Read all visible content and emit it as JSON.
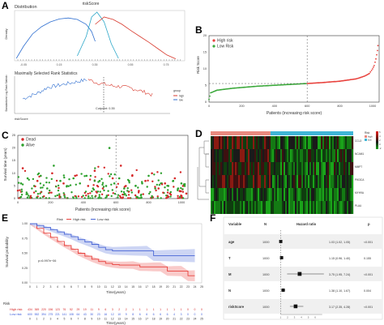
{
  "panels": {
    "A": {
      "label": "A",
      "top_title": "riskScore",
      "density": {
        "title": "Distribution",
        "ylabel": "Density",
        "x_ticks": [
          "-0.05",
          "0.15",
          "0.35",
          "0.55",
          "0.75"
        ]
      },
      "rank": {
        "title": "Maximally Selected Rank Statistics",
        "ylabel": "Standardized Log-Rank Statistic",
        "xlabel": "riskScore",
        "cutpoint_label": "Cutpoint: 0.35",
        "legend_title": "group",
        "legend_items": [
          "high",
          "low"
        ]
      }
    },
    "B": {
      "label": "B",
      "ylabel": "Risk Score",
      "xlabel": "Patients (increasing risk score)",
      "legend": [
        "High risk",
        "Low Risk"
      ],
      "x_ticks": [
        "0",
        "200",
        "400",
        "600",
        "800",
        "1000"
      ],
      "y_ticks": [
        "0",
        "5",
        "10",
        "15",
        "20"
      ],
      "colors": {
        "high": "#e8413c",
        "low": "#3aa83a"
      }
    },
    "C": {
      "label": "C",
      "ylabel": "Survival time (years)",
      "xlabel": "Patients (increasing risk score)",
      "legend": [
        "Dead",
        "Alive"
      ],
      "x_ticks": [
        "0",
        "200",
        "400",
        "600",
        "800",
        "1000"
      ],
      "y_ticks": [
        "0",
        "5",
        "10",
        "15",
        "20",
        "25"
      ],
      "colors": {
        "dead": "#d62728",
        "alive": "#2ca02c"
      }
    },
    "D": {
      "label": "D",
      "genes": [
        "CCL3",
        "NCAM1",
        "MMP7",
        "PIK3CA",
        "MYH9A",
        "PLAU"
      ],
      "legend_title": "Risk",
      "legend_items": [
        "high",
        "low"
      ],
      "scale": [
        "6",
        "4",
        "2",
        "0",
        "-2"
      ]
    },
    "E": {
      "label": "E",
      "legend_title": "Risk",
      "legend": [
        "High risk",
        "Low risk"
      ],
      "ylabel": "Survival probability",
      "xlabel": "Time(years)",
      "pvalue": "p=6.997e−06",
      "x_ticks": [
        "0",
        "1",
        "2",
        "3",
        "4",
        "5",
        "6",
        "7",
        "8",
        "9",
        "10",
        "11",
        "12",
        "13",
        "14",
        "15",
        "16",
        "17",
        "18",
        "19",
        "20",
        "21",
        "22",
        "23",
        "24",
        "25"
      ],
      "y_ticks": [
        "0.00",
        "0.25",
        "0.50",
        "0.75",
        "1.00"
      ],
      "risk_table": {
        "title": "Risk",
        "rows": [
          {
            "label": "High risk",
            "color": "#d62728",
            "values": [
              "434",
              "369",
              "220",
              "156",
              "123",
              "76",
              "52",
              "29",
              "19",
              "11",
              "9",
              "6",
              "3",
              "2",
              "2",
              "1",
              "1",
              "1",
              "1",
              "1",
              "1",
              "1",
              "1",
              "0",
              "0",
              "0"
            ]
          },
          {
            "label": "Low risk",
            "color": "#3b5bdb",
            "values": [
              "600",
              "552",
              "394",
              "275",
              "221",
              "141",
              "108",
              "64",
              "43",
              "30",
              "23",
              "16",
              "12",
              "10",
              "9",
              "8",
              "6",
              "6",
              "6",
              "6",
              "6",
              "4",
              "3",
              "0",
              "0",
              "0"
            ]
          }
        ],
        "xlabel": "Time(years)"
      },
      "colors": {
        "high": "#e8413c",
        "low": "#4a67d6"
      }
    },
    "F": {
      "label": "F",
      "headers": {
        "variable": "Variable",
        "n": "N",
        "hr": "Hazard ratio",
        "p": "p"
      },
      "rows": [
        {
          "variable": "age",
          "n": "1000",
          "hr": "1.03 (1.02, 1.05)",
          "p": "<0.001"
        },
        {
          "variable": "T",
          "n": "1000",
          "hr": "1.15 (0.96, 1.40)",
          "p": "0.155"
        },
        {
          "variable": "M",
          "n": "1000",
          "hr": "3.75 (1.95, 7.24)",
          "p": "<0.001"
        },
        {
          "variable": "N",
          "n": "1000",
          "hr": "1.38 (1.10, 1.67)",
          "p": "0.004"
        },
        {
          "variable": "riskScore",
          "n": "1000",
          "hr": "3.17 (2.35, 4.28)",
          "p": "<0.001"
        }
      ],
      "axis_ticks": [
        "1",
        "2",
        "3",
        "4",
        "5",
        "6"
      ]
    }
  },
  "chart_data": [
    {
      "type": "line",
      "panel": "A-density",
      "title": "Distribution",
      "ylabel": "Density",
      "xlabel": "",
      "xlim": [
        -0.1,
        0.85
      ],
      "series": [
        {
          "name": "",
          "color": "#2f6fd0",
          "x": [
            -0.09,
            -0.05,
            0.0,
            0.05,
            0.1,
            0.15,
            0.2,
            0.25,
            0.3,
            0.33,
            0.35
          ],
          "y": [
            0.05,
            0.3,
            0.55,
            0.7,
            0.8,
            0.86,
            0.88,
            0.85,
            0.75,
            0.6,
            0.4
          ]
        },
        {
          "name": "",
          "color": "#2aa6c8",
          "x": [
            0.25,
            0.3,
            0.33,
            0.36,
            0.4,
            0.44,
            0.48
          ],
          "y": [
            0.1,
            0.5,
            0.9,
            1.0,
            0.8,
            0.35,
            0.05
          ]
        },
        {
          "name": "",
          "color": "#d83a2e",
          "x": [
            0.35,
            0.4,
            0.45,
            0.5,
            0.55,
            0.6,
            0.65,
            0.7,
            0.75,
            0.8
          ],
          "y": [
            0.75,
            0.9,
            0.85,
            0.75,
            0.62,
            0.5,
            0.38,
            0.25,
            0.12,
            0.04
          ]
        }
      ]
    },
    {
      "type": "line",
      "panel": "A-rank",
      "title": "Maximally Selected Rank Statistics",
      "ylabel": "Standardized Log-Rank Statistic",
      "xlabel": "riskScore",
      "xlim": [
        -0.1,
        0.85
      ],
      "cutpoint": 0.35,
      "series": [
        {
          "name": "low",
          "color": "#2f6fd0",
          "x": [
            -0.05,
            0.0,
            0.05,
            0.1,
            0.15,
            0.2,
            0.25,
            0.3,
            0.35
          ],
          "y": [
            0.4,
            0.5,
            0.6,
            0.75,
            0.8,
            0.85,
            0.9,
            0.95,
            1.0
          ]
        },
        {
          "name": "high",
          "color": "#d83a2e",
          "x": [
            0.35,
            0.4,
            0.45,
            0.5,
            0.55,
            0.6,
            0.65,
            0.7,
            0.75
          ],
          "y": [
            1.0,
            0.9,
            0.85,
            0.8,
            0.78,
            0.74,
            0.68,
            0.6,
            0.5
          ]
        }
      ]
    },
    {
      "type": "scatter",
      "panel": "B",
      "xlabel": "Patients (increasing risk score)",
      "ylabel": "Risk Score",
      "xlim": [
        0,
        1040
      ],
      "ylim": [
        0,
        20
      ],
      "cutoff_patient": 600,
      "series": [
        {
          "name": "High risk",
          "x": [
            600,
            700,
            800,
            900,
            950,
            980,
            1000,
            1010,
            1020,
            1030,
            1035
          ],
          "y": [
            5.6,
            5.9,
            6.3,
            7.0,
            7.8,
            8.6,
            10.0,
            11.0,
            13.0,
            15.5,
            18.5
          ]
        },
        {
          "name": "Low Risk",
          "x": [
            0,
            10,
            50,
            150,
            300,
            450,
            599
          ],
          "y": [
            0.8,
            2.8,
            3.6,
            4.2,
            4.8,
            5.2,
            5.6
          ]
        }
      ]
    },
    {
      "type": "scatter",
      "panel": "C",
      "xlabel": "Patients (increasing risk score)",
      "ylabel": "Survival time (years)",
      "xlim": [
        0,
        1040
      ],
      "ylim": [
        0,
        25
      ],
      "cutoff_patient": 600,
      "series": [
        {
          "name": "Dead",
          "x": [
            30,
            120,
            210,
            280,
            350,
            430,
            470,
            520,
            580,
            630,
            660,
            700,
            740,
            780,
            820,
            860,
            900,
            930,
            960,
            990,
            1010,
            1030
          ],
          "y": [
            12,
            7,
            10,
            6,
            9,
            5,
            11,
            4,
            8,
            13,
            5,
            9,
            3,
            7,
            10,
            4,
            6,
            2,
            8,
            3,
            5,
            2
          ]
        },
        {
          "name": "Alive",
          "x": [
            20,
            60,
            100,
            140,
            180,
            220,
            260,
            300,
            340,
            380,
            420,
            460,
            500,
            540,
            560,
            590,
            620,
            650,
            680,
            720,
            760,
            800,
            840,
            880,
            920,
            950,
            980,
            1000,
            1020
          ],
          "y": [
            6,
            8,
            5,
            9,
            4,
            13,
            7,
            5,
            8,
            6,
            9,
            4,
            7,
            5,
            20,
            6,
            8,
            4,
            7,
            5,
            6,
            9,
            4,
            6,
            5,
            7,
            4,
            6,
            5
          ]
        }
      ]
    },
    {
      "type": "heatmap",
      "panel": "D",
      "rows": [
        "CCL3",
        "NCAM1",
        "MMP7",
        "PIK3CA",
        "MYH9A",
        "PLAU"
      ],
      "groups": [
        {
          "name": "high",
          "fraction": 0.42
        },
        {
          "name": "low",
          "fraction": 0.58
        }
      ],
      "scale": [
        -2,
        6
      ]
    },
    {
      "type": "line",
      "panel": "E",
      "xlabel": "Time(years)",
      "ylabel": "Survival probability",
      "xlim": [
        0,
        25
      ],
      "ylim": [
        0,
        1
      ],
      "series": [
        {
          "name": "High risk",
          "x": [
            0,
            1,
            2,
            3,
            4,
            5,
            6,
            7,
            8,
            9,
            10,
            11,
            12,
            13,
            14,
            15,
            16,
            17,
            18,
            19,
            20,
            21,
            22,
            23,
            24
          ],
          "y": [
            1.0,
            0.92,
            0.84,
            0.77,
            0.7,
            0.63,
            0.57,
            0.5,
            0.45,
            0.4,
            0.36,
            0.33,
            0.31,
            0.3,
            0.3,
            0.3,
            0.27,
            0.27,
            0.27,
            0.27,
            0.2,
            0.2,
            0.2,
            0.12,
            0.12
          ]
        },
        {
          "name": "Low risk",
          "x": [
            0,
            1,
            2,
            3,
            4,
            5,
            6,
            7,
            8,
            9,
            10,
            11,
            12,
            13,
            14,
            15,
            16,
            17,
            18,
            19,
            20,
            21,
            22,
            23,
            24
          ],
          "y": [
            1.0,
            0.97,
            0.94,
            0.9,
            0.86,
            0.82,
            0.78,
            0.73,
            0.69,
            0.65,
            0.6,
            0.56,
            0.54,
            0.54,
            0.54,
            0.54,
            0.54,
            0.54,
            0.46,
            0.46,
            0.46,
            0.46,
            0.46,
            0.46,
            0.46
          ]
        }
      ]
    },
    {
      "type": "table",
      "panel": "F",
      "columns": [
        "Variable",
        "N",
        "Hazard ratio",
        "p"
      ],
      "rows": [
        {
          "variable": "age",
          "n": 1000,
          "hr": 1.03,
          "lo": 1.02,
          "hi": 1.05,
          "p": "<0.001"
        },
        {
          "variable": "T",
          "n": 1000,
          "hr": 1.15,
          "lo": 0.96,
          "hi": 1.4,
          "p": "0.155"
        },
        {
          "variable": "M",
          "n": 1000,
          "hr": 3.75,
          "lo": 1.95,
          "hi": 7.24,
          "p": "<0.001"
        },
        {
          "variable": "N",
          "n": 1000,
          "hr": 1.38,
          "lo": 1.1,
          "hi": 1.67,
          "p": "0.004"
        },
        {
          "variable": "riskScore",
          "n": 1000,
          "hr": 3.17,
          "lo": 2.35,
          "hi": 4.28,
          "p": "<0.001"
        }
      ],
      "xlim": [
        0.5,
        7.5
      ]
    }
  ]
}
